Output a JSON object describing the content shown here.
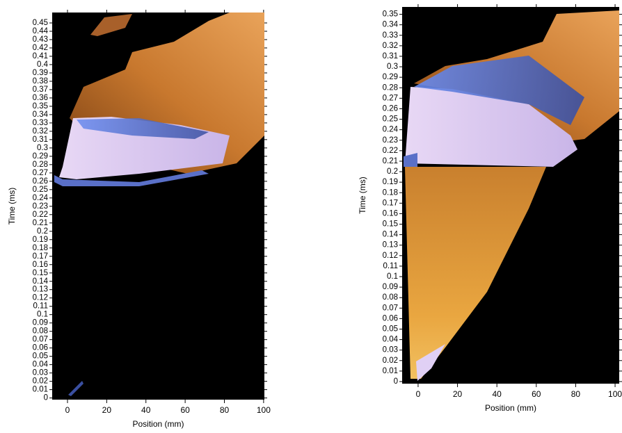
{
  "chart_data": [
    {
      "type": "streak-image",
      "xlabel": "Position (mm)",
      "ylabel": "Time (ms)",
      "xlim": [
        -7.8,
        100.4
      ],
      "ylim": [
        -0.002,
        0.4625
      ],
      "xticks": [
        0,
        20,
        40,
        60,
        80,
        100
      ],
      "yticks": [
        0,
        0.01,
        0.02,
        0.03,
        0.04,
        0.05,
        0.06,
        0.07,
        0.08,
        0.09,
        0.1,
        0.11,
        0.12,
        0.13,
        0.14,
        0.15,
        0.16,
        0.17,
        0.18,
        0.19,
        0.2,
        0.21,
        0.22,
        0.23,
        0.24,
        0.25,
        0.26,
        0.27,
        0.28,
        0.29,
        0.3,
        0.31,
        0.32,
        0.33,
        0.34,
        0.35,
        0.36,
        0.37,
        0.38,
        0.39,
        0.4,
        0.41,
        0.42,
        0.43,
        0.44,
        0.45
      ]
    },
    {
      "type": "streak-image",
      "xlabel": "Position (mm)",
      "ylabel": "Time (ms)",
      "xlim": [
        -8.1,
        102.1
      ],
      "ylim": [
        -0.002,
        0.357
      ],
      "xticks": [
        0,
        20,
        40,
        60,
        80,
        100
      ],
      "yticks": [
        0,
        0.01,
        0.02,
        0.03,
        0.04,
        0.05,
        0.06,
        0.07,
        0.08,
        0.09,
        0.1,
        0.11,
        0.12,
        0.13,
        0.14,
        0.15,
        0.16,
        0.17,
        0.18,
        0.19,
        0.2,
        0.21,
        0.22,
        0.23,
        0.24,
        0.25,
        0.26,
        0.27,
        0.28,
        0.29,
        0.3,
        0.31,
        0.32,
        0.33,
        0.34,
        0.35
      ]
    }
  ]
}
